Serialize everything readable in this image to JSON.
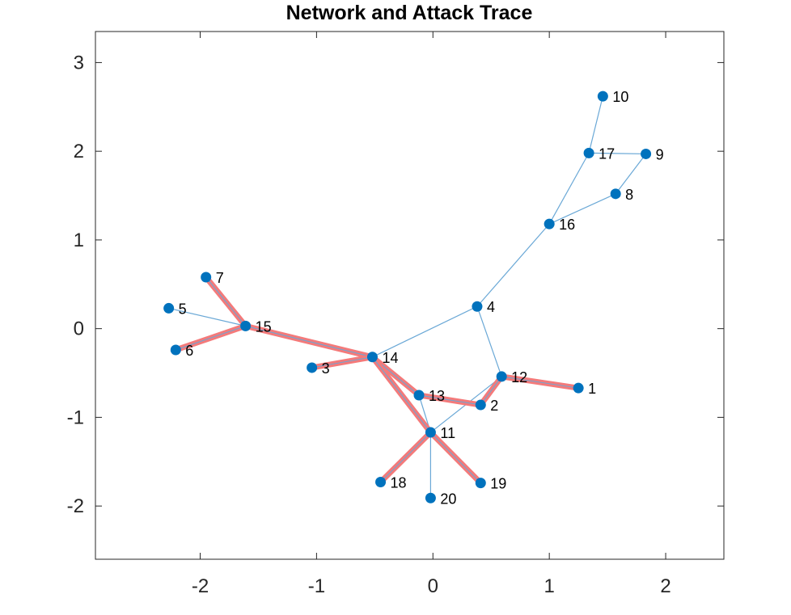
{
  "chart_data": {
    "type": "network",
    "title": "Network and Attack Trace",
    "xlabel": "",
    "ylabel": "",
    "xlim": [
      -2.9,
      2.5
    ],
    "ylim": [
      -2.6,
      3.35
    ],
    "xticks": [
      -2,
      -1,
      0,
      1,
      2
    ],
    "yticks": [
      -2,
      -1,
      0,
      1,
      2,
      3
    ],
    "tick_labels_x": [
      "-2",
      "-1",
      "0",
      "1",
      "2"
    ],
    "tick_labels_y": [
      "-2",
      "-1",
      "0",
      "1",
      "2",
      "3"
    ],
    "grid": false,
    "colors": {
      "node": "#0072BD",
      "edge": "#6AA8D6",
      "attack": "#F47A7A",
      "axis": "#262626"
    },
    "nodes": [
      {
        "id": "1",
        "x": 1.25,
        "y": -0.67
      },
      {
        "id": "2",
        "x": 0.41,
        "y": -0.86
      },
      {
        "id": "3",
        "x": -1.04,
        "y": -0.44
      },
      {
        "id": "4",
        "x": 0.38,
        "y": 0.25
      },
      {
        "id": "5",
        "x": -2.27,
        "y": 0.23
      },
      {
        "id": "6",
        "x": -2.21,
        "y": -0.24
      },
      {
        "id": "7",
        "x": -1.95,
        "y": 0.58
      },
      {
        "id": "8",
        "x": 1.57,
        "y": 1.52
      },
      {
        "id": "9",
        "x": 1.83,
        "y": 1.97
      },
      {
        "id": "10",
        "x": 1.46,
        "y": 2.62
      },
      {
        "id": "11",
        "x": -0.02,
        "y": -1.17
      },
      {
        "id": "12",
        "x": 0.59,
        "y": -0.54
      },
      {
        "id": "13",
        "x": -0.12,
        "y": -0.75
      },
      {
        "id": "14",
        "x": -0.52,
        "y": -0.32
      },
      {
        "id": "15",
        "x": -1.61,
        "y": 0.03
      },
      {
        "id": "16",
        "x": 1.0,
        "y": 1.18
      },
      {
        "id": "17",
        "x": 1.34,
        "y": 1.98
      },
      {
        "id": "18",
        "x": -0.45,
        "y": -1.73
      },
      {
        "id": "19",
        "x": 0.41,
        "y": -1.74
      },
      {
        "id": "20",
        "x": -0.02,
        "y": -1.91
      }
    ],
    "edges": [
      [
        "5",
        "15"
      ],
      [
        "14",
        "4"
      ],
      [
        "4",
        "16"
      ],
      [
        "4",
        "12"
      ],
      [
        "16",
        "17"
      ],
      [
        "16",
        "8"
      ],
      [
        "17",
        "10"
      ],
      [
        "17",
        "9"
      ],
      [
        "8",
        "9"
      ],
      [
        "13",
        "11"
      ],
      [
        "11",
        "20"
      ],
      [
        "11",
        "12"
      ]
    ],
    "attack_edges": [
      [
        "7",
        "15"
      ],
      [
        "6",
        "15"
      ],
      [
        "15",
        "14"
      ],
      [
        "3",
        "14"
      ],
      [
        "14",
        "13"
      ],
      [
        "13",
        "2"
      ],
      [
        "2",
        "12"
      ],
      [
        "12",
        "1"
      ],
      [
        "14",
        "11"
      ],
      [
        "11",
        "18"
      ],
      [
        "11",
        "19"
      ]
    ]
  }
}
